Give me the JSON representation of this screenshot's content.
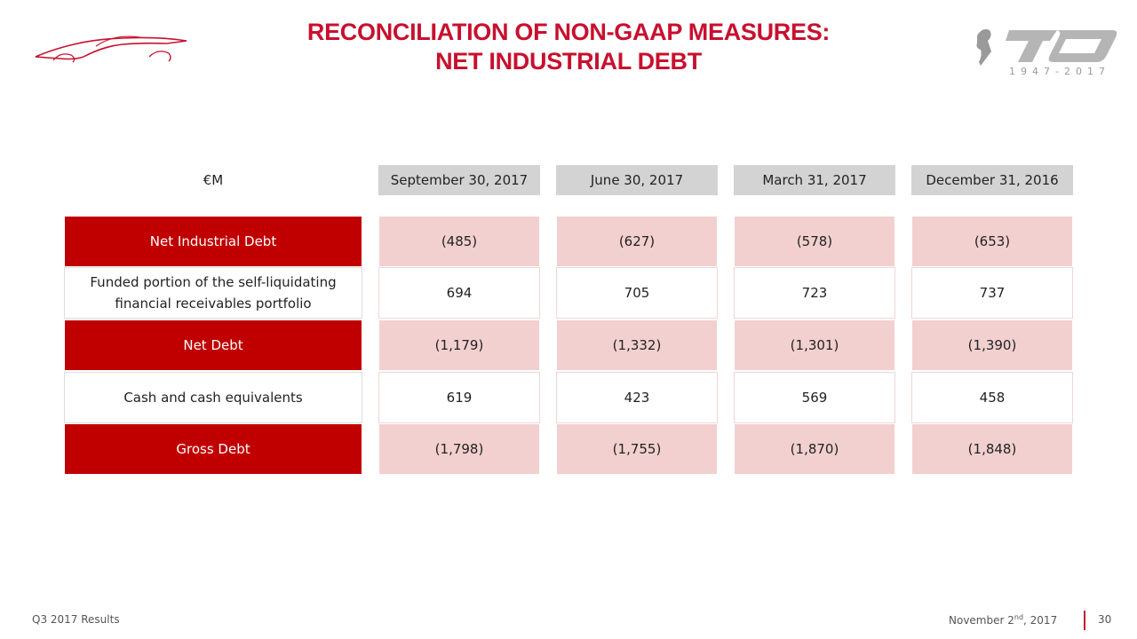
{
  "title": {
    "line1": "RECONCILIATION OF NON-GAAP MEASURES:",
    "line2": "NET INDUSTRIAL DEBT"
  },
  "logos": {
    "left": "ferrari-car-silhouette-icon",
    "right_text": "1947-2017"
  },
  "table": {
    "unit_label": "€M",
    "columns": [
      "September 30, 2017",
      "June 30, 2017",
      "March 31, 2017",
      "December 31, 2016"
    ],
    "rows": [
      {
        "label": "Net Industrial Debt",
        "style": "red",
        "values": [
          "(485)",
          "(627)",
          "(578)",
          "(653)"
        ]
      },
      {
        "label": "Funded portion of the self-liquidating financial receivables portfolio",
        "style": "white",
        "values": [
          "694",
          "705",
          "723",
          "737"
        ]
      },
      {
        "label": "Net Debt",
        "style": "red",
        "values": [
          "(1,179)",
          "(1,332)",
          "(1,301)",
          "(1,390)"
        ]
      },
      {
        "label": "Cash and cash equivalents",
        "style": "white",
        "values": [
          "619",
          "423",
          "569",
          "458"
        ]
      },
      {
        "label": "Gross Debt",
        "style": "red",
        "values": [
          "(1,798)",
          "(1,755)",
          "(1,870)",
          "(1,848)"
        ]
      }
    ]
  },
  "footer": {
    "left": "Q3 2017 Results",
    "date_prefix": "November 2",
    "date_sup": "nd",
    "date_suffix": ", 2017",
    "page": "30"
  },
  "colors": {
    "accent": "#c8102e",
    "label_red": "#c00000",
    "value_pink": "#f2d0cf",
    "header_gray": "#d3d3d3"
  }
}
